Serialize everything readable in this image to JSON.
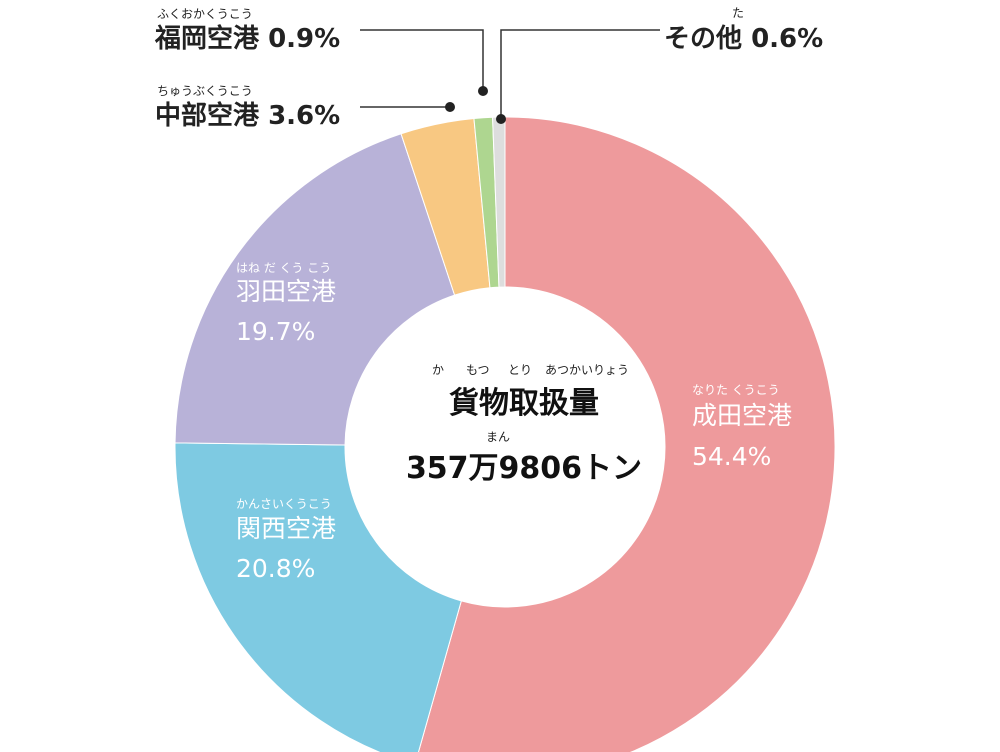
{
  "chart_data": {
    "type": "pie",
    "donut": true,
    "center": {
      "title": "貨物取扱量",
      "title_ruby": [
        "か",
        "もつ",
        "とり",
        "あつかいりょう"
      ],
      "value": "357万9806トン",
      "value_ruby": "まん"
    },
    "slices": [
      {
        "label": "成田空港",
        "ruby": "なりた くうこう",
        "value": 54.4,
        "display": "54.4%",
        "color": "#ee9a9c"
      },
      {
        "label": "関西空港",
        "ruby": "かんさいくうこう",
        "value": 20.8,
        "display": "20.8%",
        "color": "#7ecae2"
      },
      {
        "label": "羽田空港",
        "ruby": "はね だ くう こう",
        "value": 19.7,
        "display": "19.7%",
        "color": "#b8b2d8"
      },
      {
        "label": "中部空港",
        "ruby": "ちゅうぶくうこう",
        "value": 3.6,
        "display": "3.6%",
        "color": "#f8c882"
      },
      {
        "label": "福岡空港",
        "ruby": "ふくおかくうこう",
        "value": 0.9,
        "display": "0.9%",
        "color": "#aed690"
      },
      {
        "label": "その他",
        "ruby": "た",
        "value": 0.6,
        "display": "0.6%",
        "color": "#dddddd"
      }
    ]
  }
}
